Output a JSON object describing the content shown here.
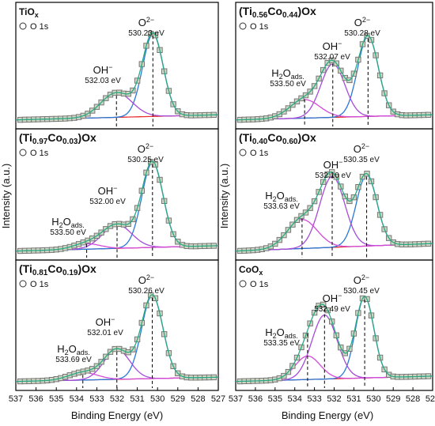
{
  "figure": {
    "y_axis_label": "Intensity (a.u.)",
    "x_axis_label": "Binding Energy (eV)",
    "x_ticks": [
      "537",
      "536",
      "535",
      "534",
      "533",
      "532",
      "531",
      "530",
      "529",
      "528",
      "527"
    ],
    "legend_label": "O 1s"
  },
  "colors": {
    "markers": "#cfd8c4",
    "envelope": "#2aa884",
    "o2": "#2a78d6",
    "oh": "#a64bd8",
    "h2o": "#d24bd8",
    "background": "#e83030"
  },
  "chart_data": [
    {
      "type": "line",
      "title_main": "TiO",
      "title_sub": "x",
      "legend": "O 1s",
      "xlim": [
        537,
        527
      ],
      "components": [
        {
          "species": "O2−",
          "energy": 530.23,
          "label_top": "O",
          "label_sup": "2−",
          "value_text": "530.23 eV",
          "amp": 0.8,
          "width": 0.6
        },
        {
          "species": "OH−",
          "energy": 532.03,
          "label_top": "OH",
          "label_sup": "−",
          "value_text": "532.03 eV",
          "amp": 0.24,
          "width": 0.9
        }
      ],
      "background": [
        0.01,
        0.06
      ]
    },
    {
      "type": "line",
      "title_main": "(Ti",
      "title_sub1": "0.97",
      "title_mid": "Co",
      "title_sub2": "0.03",
      "title_end": ")Ox",
      "legend": "O 1s",
      "xlim": [
        537,
        527
      ],
      "components": [
        {
          "species": "O2−",
          "energy": 530.25,
          "label_top": "O",
          "label_sup": "2−",
          "value_text": "530.25 eV",
          "amp": 0.79,
          "width": 0.62
        },
        {
          "species": "OH−",
          "energy": 532.0,
          "label_top": "OH",
          "label_sup": "−",
          "value_text": "532.00 eV",
          "amp": 0.22,
          "width": 0.85
        },
        {
          "species": "H2O ads.",
          "energy": 533.5,
          "label_top": "H",
          "label_sub": "2",
          "label_mid": "O",
          "label_sub2": "ads.",
          "value_text": "533.50 eV",
          "amp": 0.05,
          "width": 0.8
        }
      ],
      "background": [
        0.01,
        0.06
      ]
    },
    {
      "type": "line",
      "title_main": "(Ti",
      "title_sub1": "0.81",
      "title_mid": "Co",
      "title_sub2": "0.19",
      "title_end": ")Ox",
      "legend": "O 1s",
      "xlim": [
        537,
        527
      ],
      "components": [
        {
          "species": "O2−",
          "energy": 530.26,
          "label_top": "O",
          "label_sup": "2−",
          "value_text": "530.26 eV",
          "amp": 0.78,
          "width": 0.62
        },
        {
          "species": "OH−",
          "energy": 532.01,
          "label_top": "OH",
          "label_sup": "−",
          "value_text": "532.01 eV",
          "amp": 0.28,
          "width": 0.75
        },
        {
          "species": "H2O ads.",
          "energy": 533.69,
          "label_top": "H",
          "label_sub": "2",
          "label_mid": "O",
          "label_sub2": "ads.",
          "value_text": "533.69 eV",
          "amp": 0.07,
          "width": 0.85
        }
      ],
      "background": [
        0.01,
        0.05
      ]
    },
    {
      "type": "line",
      "title_main": "(Ti",
      "title_sub1": "0.56",
      "title_mid": "Co",
      "title_sub2": "0.44",
      "title_end": ")Ox",
      "legend": "O 1s",
      "xlim": [
        537,
        527
      ],
      "components": [
        {
          "species": "O2−",
          "energy": 530.28,
          "label_top": "O",
          "label_sup": "2−",
          "value_text": "530.28 eV",
          "amp": 0.78,
          "width": 0.62
        },
        {
          "species": "OH−",
          "energy": 532.07,
          "label_top": "OH",
          "label_sup": "−",
          "value_text": "532.07 eV",
          "amp": 0.52,
          "width": 0.72
        },
        {
          "species": "H2O ads.",
          "energy": 533.5,
          "label_top": "H",
          "label_sub": "2",
          "label_mid": "O",
          "label_sub2": "ads.",
          "value_text": "533.50 eV",
          "amp": 0.18,
          "width": 0.9
        }
      ],
      "background": [
        0.01,
        0.06
      ]
    },
    {
      "type": "line",
      "title_main": "(Ti",
      "title_sub1": "0.40",
      "title_mid": "Co",
      "title_sub2": "0.60",
      "title_end": ")Ox",
      "legend": "O 1s",
      "xlim": [
        537,
        527
      ],
      "components": [
        {
          "species": "O2−",
          "energy": 530.35,
          "label_top": "O",
          "label_sup": "2−",
          "value_text": "530.35 eV",
          "amp": 0.66,
          "width": 0.62
        },
        {
          "species": "OH−",
          "energy": 532.1,
          "label_top": "OH",
          "label_sup": "−",
          "value_text": "532.10 eV",
          "amp": 0.66,
          "width": 0.75
        },
        {
          "species": "H2O ads.",
          "energy": 533.63,
          "label_top": "H",
          "label_sub": "2",
          "label_mid": "O",
          "label_sub2": "ads.",
          "value_text": "533.63 eV",
          "amp": 0.27,
          "width": 0.9
        }
      ],
      "background": [
        0.01,
        0.08
      ]
    },
    {
      "type": "line",
      "title_main": "CoO",
      "title_sub": "x",
      "legend": "O 1s",
      "xlim": [
        537,
        527
      ],
      "components": [
        {
          "species": "O2−",
          "energy": 530.45,
          "label_top": "O",
          "label_sup": "2−",
          "value_text": "530.45 eV",
          "amp": 0.76,
          "width": 0.55
        },
        {
          "species": "OH−",
          "energy": 532.49,
          "label_top": "OH",
          "label_sup": "−",
          "value_text": "532.49 eV",
          "amp": 0.6,
          "width": 0.75
        },
        {
          "species": "H2O ads.",
          "energy": 533.35,
          "label_top": "H",
          "label_sub": "2",
          "label_mid": "O",
          "label_sub2": "ads.",
          "value_text": "533.35 eV",
          "amp": 0.22,
          "width": 0.75
        }
      ],
      "background": [
        0.01,
        0.06
      ]
    }
  ]
}
